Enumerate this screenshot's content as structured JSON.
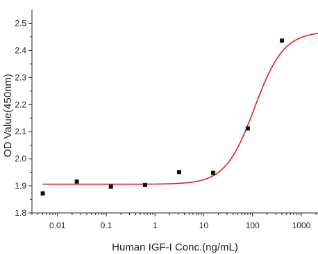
{
  "chart_data": {
    "type": "scatter",
    "title": "",
    "xlabel": "Human IGF-I Conc.(ng/mL)",
    "ylabel": "OD Value(450nm)",
    "x_scale": "log",
    "xlim": [
      0.003,
      2200
    ],
    "ylim": [
      1.8,
      2.55
    ],
    "x_ticks": [
      {
        "value": 0.01,
        "label": "0.01"
      },
      {
        "value": 0.1,
        "label": "0.1"
      },
      {
        "value": 1,
        "label": "1"
      },
      {
        "value": 10,
        "label": "10"
      },
      {
        "value": 100,
        "label": "100"
      },
      {
        "value": 1000,
        "label": "1000"
      }
    ],
    "y_ticks": [
      {
        "value": 1.8,
        "label": "1.8"
      },
      {
        "value": 1.9,
        "label": "1.9"
      },
      {
        "value": 2.0,
        "label": "2.0"
      },
      {
        "value": 2.1,
        "label": "2.1"
      },
      {
        "value": 2.2,
        "label": "2.2"
      },
      {
        "value": 2.3,
        "label": "2.3"
      },
      {
        "value": 2.4,
        "label": "2.4"
      },
      {
        "value": 2.5,
        "label": "2.5"
      }
    ],
    "points": [
      {
        "x": 0.005,
        "y": 1.872
      },
      {
        "x": 0.025,
        "y": 1.916
      },
      {
        "x": 0.125,
        "y": 1.897
      },
      {
        "x": 0.625,
        "y": 1.903
      },
      {
        "x": 3.125,
        "y": 1.951
      },
      {
        "x": 15.6,
        "y": 1.948
      },
      {
        "x": 80,
        "y": 2.112
      },
      {
        "x": 400,
        "y": 2.436
      }
    ],
    "fit_curve": {
      "model": "4PL",
      "bottom": 1.906,
      "top": 2.47,
      "ec50": 110,
      "hill": 1.45,
      "color": "#e02020"
    },
    "marker_color": "#111111",
    "grid": false,
    "legend": "none"
  }
}
